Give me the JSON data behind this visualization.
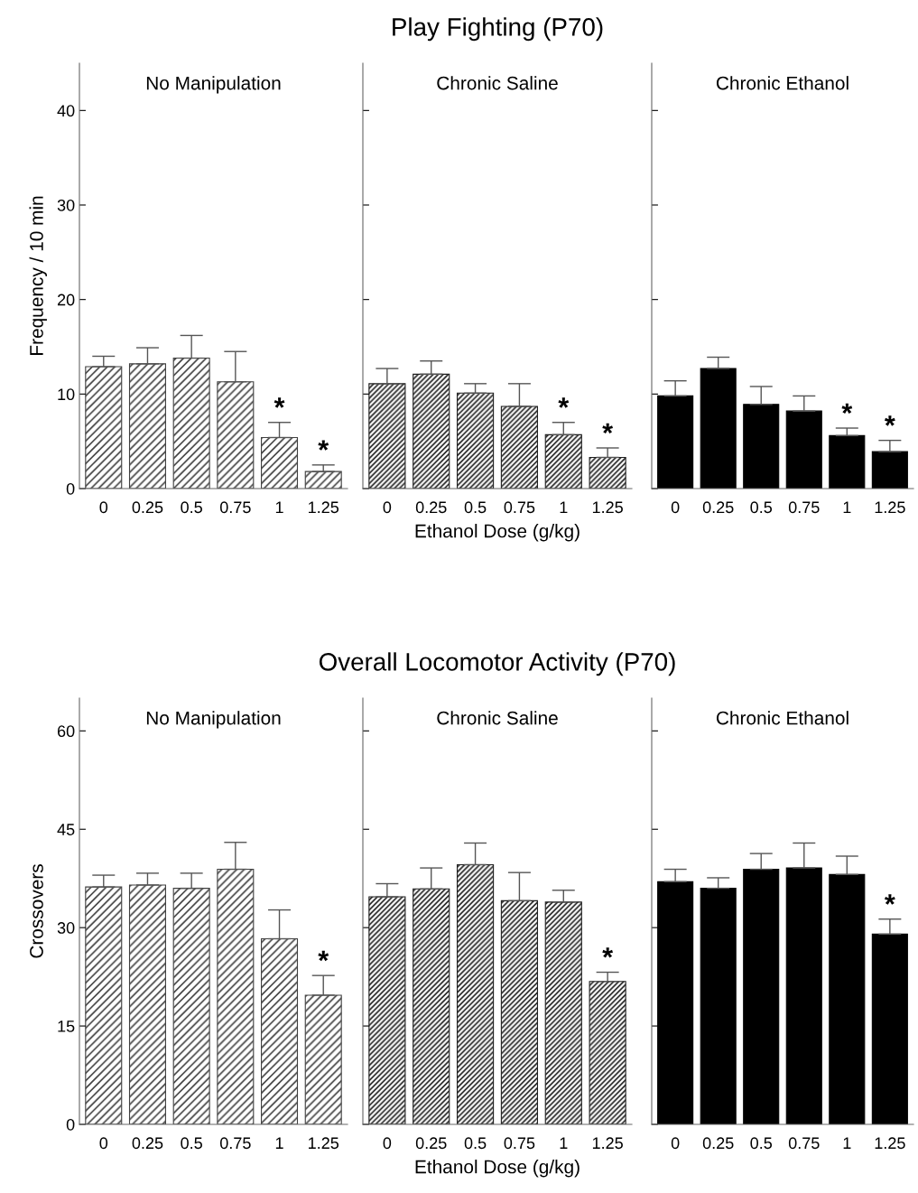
{
  "chart_data": [
    {
      "type": "bar",
      "subtitle": "No Manipulation",
      "ylabel": "Frequency / 10 min",
      "categories": [
        "0",
        "0.25",
        "0.5",
        "0.75",
        "1",
        "1.25"
      ],
      "color": "#404040",
      "values": [
        12.9,
        13.2,
        13.8,
        11.3,
        5.4,
        1.8
      ],
      "errors": [
        [
          12.9,
          14.0
        ],
        [
          13.2,
          14.9
        ],
        [
          13.8,
          16.2
        ],
        [
          11.3,
          14.5
        ],
        [
          5.4,
          7.0
        ],
        [
          1.8,
          2.5
        ]
      ],
      "ylim": [
        0,
        45
      ],
      "yticks": [
        0,
        10,
        20,
        30,
        40
      ],
      "grid": false,
      "annotations": [
        {
          "text": "*",
          "x": "1",
          "y": 7.0
        },
        {
          "text": "*",
          "x": "1.25",
          "y": 2.5
        }
      ]
    },
    {
      "type": "bar",
      "title": "Play Fighting (P70)",
      "subtitle": "Chronic Saline",
      "xlabel": "Ethanol Dose (g/kg)",
      "categories": [
        "0",
        "0.25",
        "0.5",
        "0.75",
        "1",
        "1.25"
      ],
      "color": "#202020",
      "values": [
        11.1,
        12.1,
        10.1,
        8.7,
        5.7,
        3.3
      ],
      "errors": [
        [
          11.1,
          12.7
        ],
        [
          12.1,
          13.5
        ],
        [
          10.1,
          11.1
        ],
        [
          8.7,
          11.1
        ],
        [
          5.7,
          7.0
        ],
        [
          3.3,
          4.3
        ]
      ],
      "ylim": [
        0,
        45
      ],
      "yticks": [
        0,
        10,
        20,
        30,
        40
      ],
      "tick_labels": "x",
      "grid": false,
      "annotations": [
        {
          "text": "*",
          "x": "1",
          "y": 7.0
        },
        {
          "text": "*",
          "x": "1.25",
          "y": 4.3
        }
      ]
    },
    {
      "type": "bar",
      "subtitle": "Chronic Ethanol",
      "categories": [
        "0",
        "0.25",
        "0.5",
        "0.75",
        "1",
        "1.25"
      ],
      "color": "#000000",
      "values": [
        9.8,
        12.7,
        8.9,
        8.2,
        5.6,
        3.9
      ],
      "errors": [
        [
          9.8,
          11.4
        ],
        [
          12.7,
          13.9
        ],
        [
          8.9,
          10.8
        ],
        [
          8.2,
          9.8
        ],
        [
          5.6,
          6.4
        ],
        [
          3.9,
          5.1
        ]
      ],
      "ylim": [
        0,
        45
      ],
      "yticks": [
        0,
        10,
        20,
        30,
        40
      ],
      "tick_labels": "x",
      "grid": false,
      "annotations": [
        {
          "text": "*",
          "x": "1",
          "y": 6.4
        },
        {
          "text": "*",
          "x": "1.25",
          "y": 5.1
        }
      ]
    },
    {
      "type": "bar",
      "subtitle": "No Manipulation",
      "ylabel": "Crossovers",
      "categories": [
        "0",
        "0.25",
        "0.5",
        "0.75",
        "1",
        "1.25"
      ],
      "color": "#404040",
      "values": [
        36.2,
        36.5,
        36.0,
        38.9,
        28.3,
        19.7
      ],
      "errors": [
        [
          36.2,
          38.0
        ],
        [
          36.5,
          38.3
        ],
        [
          36.0,
          38.3
        ],
        [
          38.9,
          43.0
        ],
        [
          28.3,
          32.7
        ],
        [
          19.7,
          22.7
        ]
      ],
      "ylim": [
        0,
        65
      ],
      "yticks": [
        0,
        15,
        30,
        45,
        60
      ],
      "grid": false,
      "annotations": [
        {
          "text": "*",
          "x": "1.25",
          "y": 22.7
        }
      ]
    },
    {
      "type": "bar",
      "title": "Overall Locomotor Activity (P70)",
      "subtitle": "Chronic Saline",
      "xlabel": "Ethanol Dose (g/kg)",
      "categories": [
        "0",
        "0.25",
        "0.5",
        "0.75",
        "1",
        "1.25"
      ],
      "color": "#202020",
      "values": [
        34.7,
        35.9,
        39.6,
        34.1,
        33.9,
        21.8
      ],
      "errors": [
        [
          34.7,
          36.7
        ],
        [
          35.9,
          39.1
        ],
        [
          39.6,
          42.9
        ],
        [
          34.1,
          38.4
        ],
        [
          33.9,
          35.7
        ],
        [
          21.8,
          23.2
        ]
      ],
      "ylim": [
        0,
        65
      ],
      "yticks": [
        0,
        15,
        30,
        45,
        60
      ],
      "tick_labels": "x",
      "grid": false,
      "annotations": [
        {
          "text": "*",
          "x": "1.25",
          "y": 23.2
        }
      ]
    },
    {
      "type": "bar",
      "subtitle": "Chronic Ethanol",
      "categories": [
        "0",
        "0.25",
        "0.5",
        "0.75",
        "1",
        "1.25"
      ],
      "color": "#000000",
      "values": [
        37.0,
        36.0,
        38.9,
        39.1,
        38.1,
        29.0
      ],
      "errors": [
        [
          37.0,
          38.9
        ],
        [
          36.0,
          37.6
        ],
        [
          38.9,
          41.3
        ],
        [
          39.1,
          42.9
        ],
        [
          38.1,
          40.9
        ],
        [
          29.0,
          31.3
        ]
      ],
      "ylim": [
        0,
        65
      ],
      "yticks": [
        0,
        15,
        30,
        45,
        60
      ],
      "tick_labels": "x",
      "grid": false,
      "annotations": [
        {
          "text": "*",
          "x": "1.25",
          "y": 31.3
        }
      ]
    }
  ]
}
